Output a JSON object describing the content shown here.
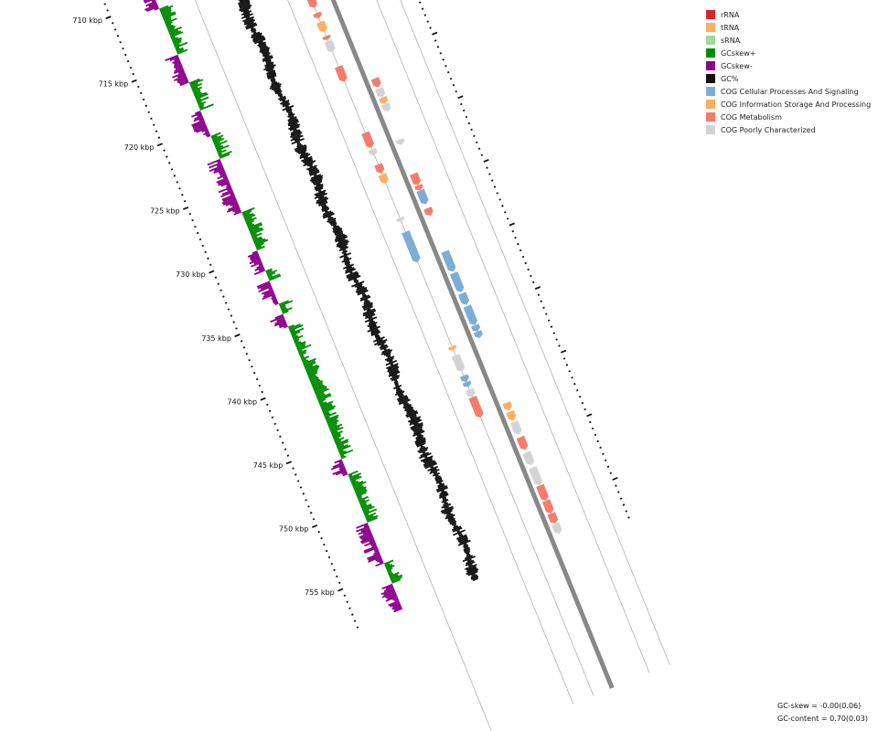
{
  "chart_data": {
    "type": "circular-genome-map",
    "range_kbp": [
      708,
      758
    ],
    "tick_labels": [
      {
        "kbp": 710,
        "label": "710 kbp"
      },
      {
        "kbp": 715,
        "label": "715 kbp"
      },
      {
        "kbp": 720,
        "label": "720 kbp"
      },
      {
        "kbp": 725,
        "label": "725 kbp"
      },
      {
        "kbp": 730,
        "label": "730 kbp"
      },
      {
        "kbp": 735,
        "label": "735 kbp"
      },
      {
        "kbp": 740,
        "label": "740 kbp"
      },
      {
        "kbp": 745,
        "label": "745 kbp"
      },
      {
        "kbp": 750,
        "label": "750 kbp"
      },
      {
        "kbp": 755,
        "label": "755 kbp"
      }
    ],
    "gc_skew_sign_by_kbp": [
      {
        "start": 708,
        "end": 709.8,
        "sign": "+"
      },
      {
        "start": 709.8,
        "end": 710.8,
        "sign": "-"
      },
      {
        "start": 710.8,
        "end": 714.4,
        "sign": "+"
      },
      {
        "start": 714.4,
        "end": 716.6,
        "sign": "-"
      },
      {
        "start": 716.6,
        "end": 718.8,
        "sign": "+"
      },
      {
        "start": 718.8,
        "end": 720.8,
        "sign": "-"
      },
      {
        "start": 720.8,
        "end": 722.6,
        "sign": "+"
      },
      {
        "start": 722.6,
        "end": 726.8,
        "sign": "-"
      },
      {
        "start": 726.8,
        "end": 729.8,
        "sign": "+"
      },
      {
        "start": 729.8,
        "end": 731.4,
        "sign": "-"
      },
      {
        "start": 731.4,
        "end": 732.2,
        "sign": "+"
      },
      {
        "start": 732.2,
        "end": 734.0,
        "sign": "-"
      },
      {
        "start": 734.0,
        "end": 734.8,
        "sign": "+"
      },
      {
        "start": 734.8,
        "end": 735.8,
        "sign": "-"
      },
      {
        "start": 735.8,
        "end": 746.2,
        "sign": "+"
      },
      {
        "start": 746.2,
        "end": 747.4,
        "sign": "-"
      },
      {
        "start": 747.4,
        "end": 751.2,
        "sign": "+"
      },
      {
        "start": 751.2,
        "end": 754.4,
        "sign": "-"
      },
      {
        "start": 754.4,
        "end": 756.0,
        "sign": "+"
      },
      {
        "start": 756.0,
        "end": 758,
        "sign": "-"
      }
    ],
    "features": [
      {
        "start": 709.0,
        "end": 709.8,
        "strand": "+",
        "category": "cog_metabolism"
      },
      {
        "start": 709.6,
        "end": 710.4,
        "strand": "-",
        "category": "cog_poor"
      },
      {
        "start": 710.4,
        "end": 711.0,
        "strand": "-",
        "category": "cog_poor"
      },
      {
        "start": 712.5,
        "end": 713.4,
        "strand": "+",
        "category": "cog_metabolism"
      },
      {
        "start": 713.4,
        "end": 713.7,
        "strand": "+",
        "category": "cog_metabolism"
      },
      {
        "start": 714.1,
        "end": 715.0,
        "strand": "+",
        "category": "cog_metabolism"
      },
      {
        "start": 715.4,
        "end": 715.8,
        "strand": "+",
        "category": "cog_metabolism"
      },
      {
        "start": 716.1,
        "end": 716.9,
        "strand": "+",
        "category": "cog_info"
      },
      {
        "start": 717.2,
        "end": 717.5,
        "strand": "+",
        "category": "cog_metabolism"
      },
      {
        "start": 717.6,
        "end": 718.5,
        "strand": "+",
        "category": "cog_poor"
      },
      {
        "start": 719.6,
        "end": 720.8,
        "strand": "+",
        "category": "cog_metabolism"
      },
      {
        "start": 721.4,
        "end": 722.1,
        "strand": "-",
        "category": "cog_metabolism"
      },
      {
        "start": 722.2,
        "end": 722.9,
        "strand": "-",
        "category": "cog_poor"
      },
      {
        "start": 722.9,
        "end": 723.4,
        "strand": "-",
        "category": "cog_info"
      },
      {
        "start": 723.4,
        "end": 724.0,
        "strand": "-",
        "category": "cog_poor"
      },
      {
        "start": 724.8,
        "end": 726.0,
        "strand": "+",
        "category": "cog_metabolism"
      },
      {
        "start": 726.1,
        "end": 726.6,
        "strand": "+",
        "category": "cog_poor"
      },
      {
        "start": 726.2,
        "end": 726.6,
        "strand": "-",
        "category": "cog_poor"
      },
      {
        "start": 727.3,
        "end": 728.0,
        "strand": "+",
        "category": "cog_metabolism"
      },
      {
        "start": 728.1,
        "end": 728.8,
        "strand": "+",
        "category": "cog_info"
      },
      {
        "start": 728.9,
        "end": 729.8,
        "strand": "-",
        "category": "cog_metabolism"
      },
      {
        "start": 729.8,
        "end": 730.2,
        "strand": "-",
        "category": "cog_metabolism"
      },
      {
        "start": 730.2,
        "end": 731.3,
        "strand": "-",
        "category": "cog_cellular"
      },
      {
        "start": 731.5,
        "end": 731.8,
        "strand": "+",
        "category": "cog_poor"
      },
      {
        "start": 731.6,
        "end": 732.2,
        "strand": "-",
        "category": "cog_metabolism"
      },
      {
        "start": 732.6,
        "end": 735.0,
        "strand": "+",
        "category": "cog_cellular"
      },
      {
        "start": 735.0,
        "end": 736.6,
        "strand": "-",
        "category": "cog_cellular"
      },
      {
        "start": 736.7,
        "end": 738.2,
        "strand": "-",
        "category": "cog_cellular"
      },
      {
        "start": 738.3,
        "end": 739.2,
        "strand": "-",
        "category": "cog_cellular"
      },
      {
        "start": 739.3,
        "end": 740.8,
        "strand": "-",
        "category": "cog_cellular"
      },
      {
        "start": 740.8,
        "end": 741.3,
        "strand": "-",
        "category": "cog_cellular"
      },
      {
        "start": 741.3,
        "end": 741.8,
        "strand": "-",
        "category": "cog_cellular"
      },
      {
        "start": 741.6,
        "end": 741.9,
        "strand": "+",
        "category": "cog_info"
      },
      {
        "start": 742.3,
        "end": 743.6,
        "strand": "+",
        "category": "cog_poor"
      },
      {
        "start": 743.9,
        "end": 744.4,
        "strand": "+",
        "category": "cog_cellular"
      },
      {
        "start": 744.4,
        "end": 744.8,
        "strand": "+",
        "category": "cog_cellular"
      },
      {
        "start": 745.0,
        "end": 745.6,
        "strand": "+",
        "category": "cog_poor"
      },
      {
        "start": 745.6,
        "end": 747.2,
        "strand": "+",
        "category": "cog_metabolism"
      },
      {
        "start": 746.9,
        "end": 747.5,
        "strand": "-",
        "category": "cog_info"
      },
      {
        "start": 747.6,
        "end": 748.3,
        "strand": "-",
        "category": "cog_info"
      },
      {
        "start": 748.4,
        "end": 749.4,
        "strand": "-",
        "category": "cog_poor"
      },
      {
        "start": 749.6,
        "end": 750.6,
        "strand": "-",
        "category": "cog_metabolism"
      },
      {
        "start": 750.8,
        "end": 751.8,
        "strand": "-",
        "category": "cog_poor"
      },
      {
        "start": 752.0,
        "end": 753.4,
        "strand": "-",
        "category": "cog_poor"
      },
      {
        "start": 753.4,
        "end": 754.6,
        "strand": "-",
        "category": "cog_metabolism"
      },
      {
        "start": 754.6,
        "end": 755.6,
        "strand": "-",
        "category": "cog_metabolism"
      },
      {
        "start": 755.6,
        "end": 756.4,
        "strand": "-",
        "category": "cog_metabolism"
      },
      {
        "start": 756.4,
        "end": 757.2,
        "strand": "-",
        "category": "cog_poor"
      }
    ]
  },
  "legend": [
    {
      "key": "rrna",
      "label": "rRNA",
      "color": "#d62728"
    },
    {
      "key": "trna",
      "label": "tRNA",
      "color": "#fdae61"
    },
    {
      "key": "srna",
      "label": "sRNA",
      "color": "#a1d99b"
    },
    {
      "key": "gcskew_pos",
      "label": "GCskew+",
      "color": "#008c00"
    },
    {
      "key": "gcskew_neg",
      "label": "GCskew-",
      "color": "#8b008b"
    },
    {
      "key": "gc",
      "label": "GC%",
      "color": "#111111"
    },
    {
      "key": "cog_cellular",
      "label": "COG Cellular Processes And Signaling",
      "color": "#7eadd3"
    },
    {
      "key": "cog_info",
      "label": "COG Information Storage And Processing",
      "color": "#fdae61"
    },
    {
      "key": "cog_metabolism",
      "label": "COG Metabolism",
      "color": "#f47c6e"
    },
    {
      "key": "cog_poor",
      "label": "COG Poorly Characterized",
      "color": "#d3d3d3"
    }
  ],
  "stats": {
    "gc_skew": "GC-skew = -0.00(0.06)",
    "gc_content": "GC-content = 0.70(0.03)"
  }
}
